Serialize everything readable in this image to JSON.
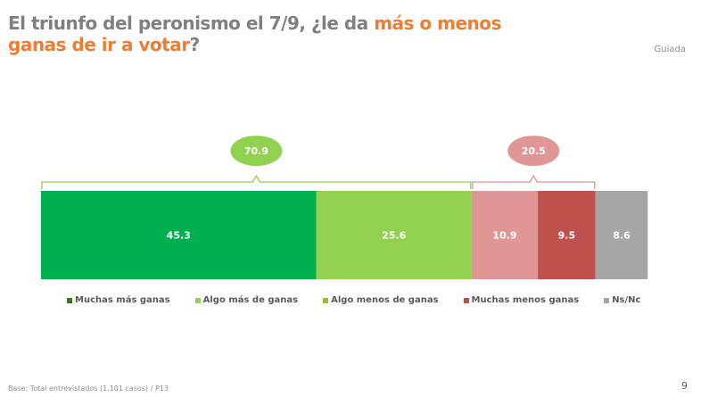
{
  "title": {
    "part1": "El triunfo del peronismo el 7/9,  ¿le da ",
    "highlight1": "más o menos",
    "highlight2": "ganas de ir a votar",
    "part2": "?"
  },
  "subtitle": "Guiada",
  "footer": "Base: Total entrevistados (1.101 casos) / P13",
  "page_number": "9",
  "chart_data": {
    "type": "bar",
    "orientation": "horizontal-stacked",
    "xlim": [
      0,
      100
    ],
    "series": [
      {
        "name": "Muchas más ganas",
        "value": 45.3,
        "color": "#00b050",
        "legend_color": "#38761d"
      },
      {
        "name": "Algo más de ganas",
        "value": 25.6,
        "color": "#92d050",
        "legend_color": "#92d050"
      },
      {
        "name": "Algo menos de ganas",
        "value": 10.9,
        "color": "#e09694",
        "legend_color": "#a5b82a"
      },
      {
        "name": "Muchas menos ganas",
        "value": 9.5,
        "color": "#c0504d",
        "legend_color": "#c0504d"
      },
      {
        "name": "Ns/Nc",
        "value": 8.6,
        "color": "#a6a6a6",
        "legend_color": "#a6a6a6"
      }
    ],
    "groups": [
      {
        "label": "70.9",
        "from": 0,
        "to": 2,
        "color": "#92d050",
        "bracket_color": "#92d050"
      },
      {
        "label": "20.5",
        "from": 2,
        "to": 4,
        "color": "#e09694",
        "bracket_color": "#d99694"
      }
    ]
  }
}
